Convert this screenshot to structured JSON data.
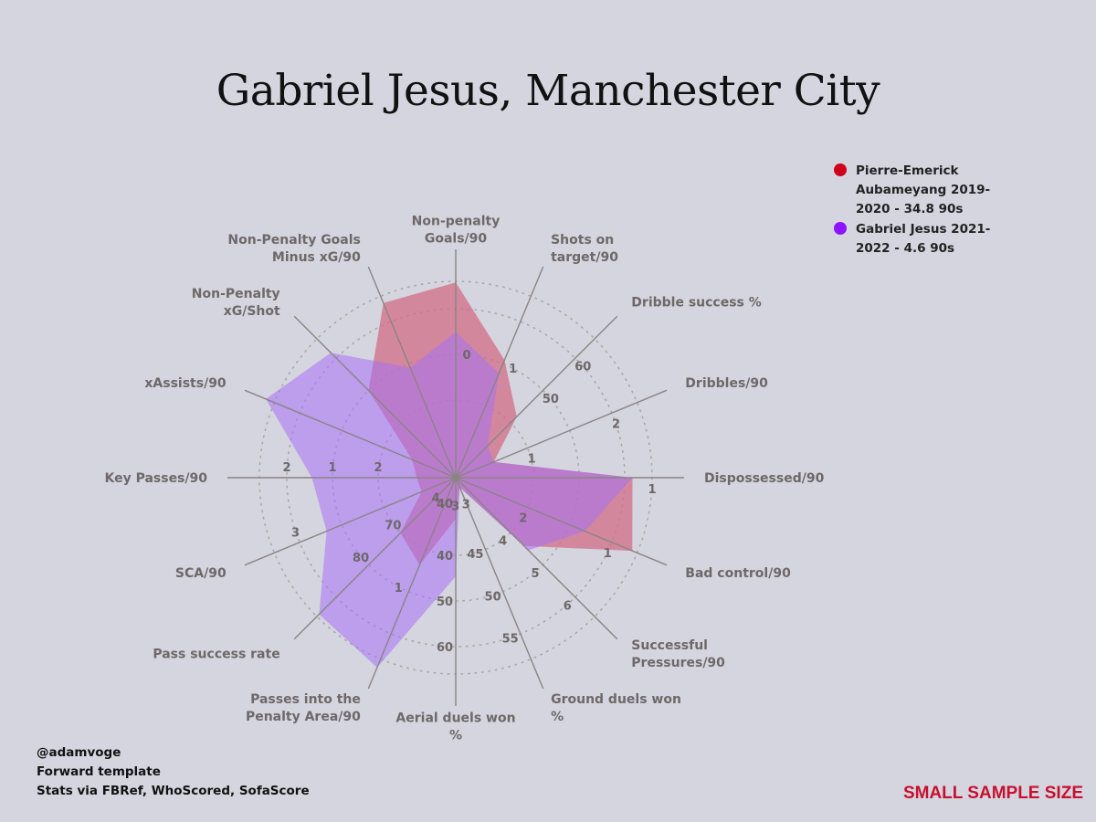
{
  "title": "Gabriel Jesus, Manchester City",
  "legend": [
    {
      "label": "Pierre-Emerick Aubameyang 2019-2020 - 34.8 90s",
      "color": "#d0021b"
    },
    {
      "label": "Gabriel Jesus 2021-2022 - 4.6 90s",
      "color": "#9013fe"
    }
  ],
  "credits": [
    "@adamvoge",
    "Forward template",
    "Stats via FBRef, WhoScored, SofaScore"
  ],
  "warning": "SMALL SAMPLE SIZE",
  "colors": {
    "background": "#d5d5df",
    "series1_fill": "#d26a82",
    "series2_fill": "#a871f5",
    "spoke": "#8a8484",
    "ring": "#a9a9a9",
    "axis_label": "#6e6868",
    "tick_label": "#6e6868"
  },
  "chart_data": {
    "type": "radar",
    "title": "Gabriel Jesus, Manchester City",
    "center": "top-right legend",
    "axes": [
      {
        "label": "Non-penalty Goals/90",
        "ticks": [
          "0"
        ]
      },
      {
        "label": "Shots on target/90",
        "ticks": [
          "1"
        ]
      },
      {
        "label": "Dribble success %",
        "ticks": [
          "50",
          "60"
        ]
      },
      {
        "label": "Dribbles/90",
        "ticks": [
          "1",
          "2"
        ]
      },
      {
        "label": "Dispossessed/90",
        "ticks": [
          "1"
        ]
      },
      {
        "label": "Bad control/90",
        "ticks": [
          "2",
          "1"
        ]
      },
      {
        "label": "Successful Pressures/90",
        "ticks": [
          "3",
          "4",
          "5",
          "6"
        ]
      },
      {
        "label": "Ground duels won %",
        "ticks": [
          "45",
          "50",
          "55"
        ]
      },
      {
        "label": "Aerial duels won %",
        "ticks": [
          "40",
          "50",
          "60"
        ]
      },
      {
        "label": "Passes into the Penalty Area/90",
        "ticks": [
          "1"
        ]
      },
      {
        "label": "Pass success rate",
        "ticks": [
          "70",
          "80"
        ]
      },
      {
        "label": "SCA/90",
        "ticks": [
          "3"
        ]
      },
      {
        "label": "Key Passes/90",
        "ticks": [
          "2",
          "1"
        ]
      },
      {
        "label": "xAssists/90",
        "ticks": []
      },
      {
        "label": "Non-Penalty xG/Shot",
        "ticks": []
      },
      {
        "label": "Non-Penalty Goals Minus xG/90",
        "ticks": []
      }
    ],
    "tick_rings": [
      {
        "axis": 0,
        "ring": 2,
        "text": "0"
      },
      {
        "axis": 1,
        "ring": 2,
        "text": "1"
      },
      {
        "axis": 2,
        "ring": 2,
        "text": "50"
      },
      {
        "axis": 2,
        "ring": 3,
        "text": "60"
      },
      {
        "axis": 3,
        "ring": 1,
        "text": "1"
      },
      {
        "axis": 3,
        "ring": 3,
        "text": "2"
      },
      {
        "axis": 4,
        "ring": 4,
        "text": "1"
      },
      {
        "axis": 5,
        "ring": 1,
        "text": "2"
      },
      {
        "axis": 5,
        "ring": 3,
        "text": "1"
      },
      {
        "axis": 6,
        "ring": 0,
        "text": "3"
      },
      {
        "axis": 6,
        "ring": 1,
        "text": "4"
      },
      {
        "axis": 6,
        "ring": 2,
        "text": "5"
      },
      {
        "axis": 6,
        "ring": 3,
        "text": "6"
      },
      {
        "axis": 7,
        "ring": 1,
        "text": "45"
      },
      {
        "axis": 7,
        "ring": 2,
        "text": "50"
      },
      {
        "axis": 7,
        "ring": 3,
        "text": "55"
      },
      {
        "axis": 8,
        "ring": 0,
        "text": "40"
      },
      {
        "axis": 8,
        "ring": 2,
        "text": "50"
      },
      {
        "axis": 8,
        "ring": 3,
        "text": "60"
      },
      {
        "axis": 9,
        "ring": 2,
        "text": "1"
      },
      {
        "axis": 10,
        "ring": 1,
        "text": "70"
      },
      {
        "axis": 10,
        "ring": 2,
        "text": "80"
      },
      {
        "axis": 11,
        "ring": 3,
        "text": "3"
      },
      {
        "axis": 12,
        "ring": 1,
        "text": "2"
      },
      {
        "axis": 12,
        "ring": 2,
        "text": "1"
      },
      {
        "axis": 12,
        "ring": 3,
        "text": "2"
      },
      {
        "axis": 9,
        "ring": 0,
        "text": "4"
      },
      {
        "axis": 8,
        "ring": 1,
        "text": "40"
      },
      {
        "axis": 7,
        "ring": 0,
        "text": "3"
      }
    ],
    "scale": "normalized 0-1 per axis",
    "series": [
      {
        "name": "Pierre-Emerick Aubameyang 2019-2020 - 34.8 90s",
        "values": [
          0.95,
          0.62,
          0.42,
          0.2,
          0.86,
          0.93,
          0.47,
          0.05,
          0.2,
          0.46,
          0.38,
          0.18,
          0.19,
          0.23,
          0.6,
          0.92
        ]
      },
      {
        "name": "Gabriel Jesus 2021-2022 - 4.6 90s",
        "values": [
          0.71,
          0.55,
          0.22,
          0.2,
          0.86,
          0.68,
          0.5,
          0.05,
          0.48,
          1.0,
          0.94,
          0.68,
          0.7,
          1.0,
          0.86,
          0.58
        ]
      }
    ],
    "rings": 4,
    "grid": true,
    "legend": "top-right"
  }
}
